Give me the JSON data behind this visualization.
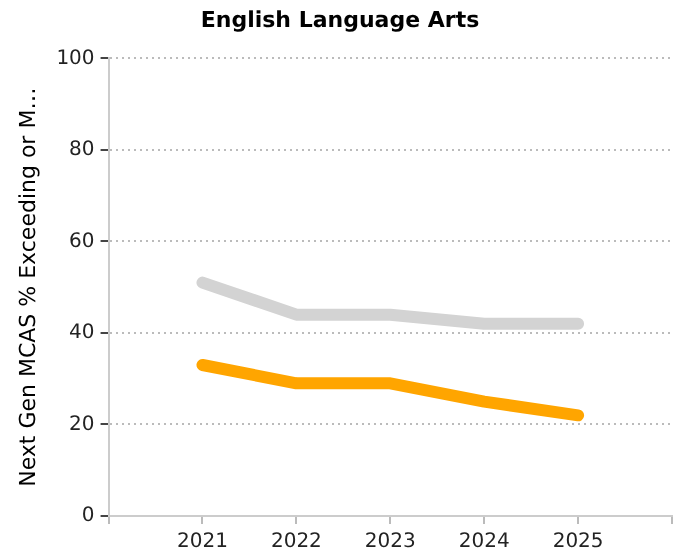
{
  "chart_data": {
    "type": "line",
    "title": "English Language Arts",
    "ylabel": "Next Gen MCAS % Exceeding or M…",
    "x": [
      2021,
      2022,
      2023,
      2024,
      2025
    ],
    "xlim": [
      2020,
      2026
    ],
    "xticks": [
      {
        "value": 2020,
        "label": null
      },
      2021,
      2022,
      2023,
      2024,
      2025,
      {
        "value": 2026,
        "label": null
      }
    ],
    "ylim": [
      0,
      100
    ],
    "yticks": [
      0,
      20,
      40,
      60,
      80,
      100
    ],
    "series": [
      {
        "color": "#d3d3d3",
        "values": [
          51,
          44,
          44,
          42,
          42
        ]
      },
      {
        "color": "#ffa500",
        "values": [
          33,
          29,
          29,
          25,
          22
        ]
      }
    ],
    "grid": "y",
    "legend": false,
    "marker": "none",
    "line_style": "solid"
  }
}
